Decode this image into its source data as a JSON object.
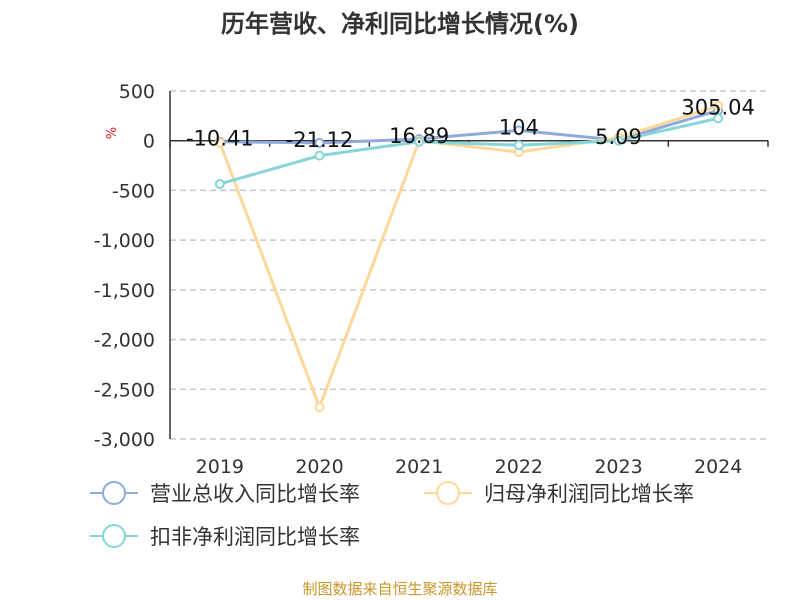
{
  "chart_data": {
    "type": "line",
    "title": "历年营收、净利同比增长情况(%)",
    "ylabel": "%",
    "categories": [
      "2019",
      "2020",
      "2021",
      "2022",
      "2023",
      "2024"
    ],
    "ylim": [
      -3000,
      500
    ],
    "yticks": [
      500,
      0,
      -500,
      -1000,
      -1500,
      -2000,
      -2500,
      -3000
    ],
    "ytick_labels": [
      "500",
      "0",
      "-500",
      "-1,000",
      "-1,500",
      "-2,000",
      "-2,500",
      "-3,000"
    ],
    "grid": true,
    "legend_placement": "bottom",
    "series": [
      {
        "name": "营业总收入同比增长率",
        "color": "#8eabdc",
        "values": [
          -10.41,
          -21.12,
          16.89,
          104,
          5.09,
          305.04
        ],
        "labels": [
          "-10.41",
          "-21.12",
          "16.89",
          "104",
          "5.09",
          "305.04"
        ]
      },
      {
        "name": "归母净利润同比增长率",
        "color": "#fdd89a",
        "values": [
          -20,
          -2680,
          0,
          -115,
          30,
          350
        ]
      },
      {
        "name": "扣非净利润同比增长率",
        "color": "#86d5d8",
        "values": [
          -435,
          -150,
          -10,
          -45,
          0,
          225
        ]
      }
    ]
  },
  "footer": "制图数据来自恒生聚源数据库",
  "colors": {
    "footer": "#c8962a",
    "axis_label": "#e02020"
  }
}
